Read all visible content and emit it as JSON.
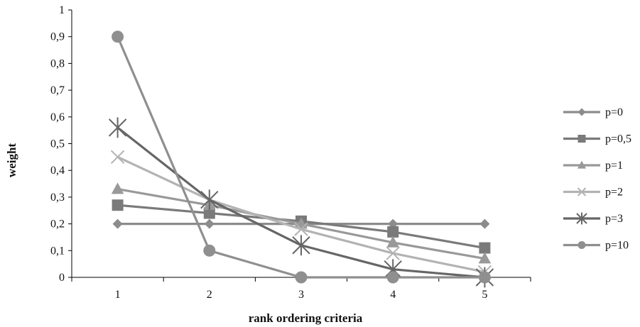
{
  "chart_data": {
    "type": "line",
    "title": "",
    "xlabel": "rank ordering criteria",
    "ylabel": "weight",
    "x": [
      1,
      2,
      3,
      4,
      5
    ],
    "xlim": [
      0.5,
      5.5
    ],
    "ylim": [
      0,
      1
    ],
    "yticks": [
      "0",
      "0,1",
      "0,2",
      "0,3",
      "0,4",
      "0,5",
      "0,6",
      "0,7",
      "0,8",
      "0,9",
      "1"
    ],
    "xticks": [
      "1",
      "2",
      "3",
      "4",
      "5"
    ],
    "grid": false,
    "legend_position": "right",
    "series": [
      {
        "name": "p=0",
        "marker": "diamond",
        "color": "#8c8c8c",
        "values": [
          0.2,
          0.2,
          0.2,
          0.2,
          0.2
        ]
      },
      {
        "name": "p=0,5",
        "marker": "square",
        "color": "#7a7a7a",
        "values": [
          0.27,
          0.24,
          0.21,
          0.17,
          0.11
        ]
      },
      {
        "name": "p=1",
        "marker": "triangle",
        "color": "#999999",
        "values": [
          0.33,
          0.27,
          0.2,
          0.13,
          0.07
        ]
      },
      {
        "name": "p=2",
        "marker": "x",
        "color": "#b3b3b3",
        "values": [
          0.45,
          0.29,
          0.18,
          0.09,
          0.02
        ]
      },
      {
        "name": "p=3",
        "marker": "star",
        "color": "#666666",
        "values": [
          0.56,
          0.29,
          0.12,
          0.03,
          0.0
        ]
      },
      {
        "name": "p=10",
        "marker": "circle",
        "color": "#8f8f8f",
        "values": [
          0.9,
          0.1,
          0.0,
          0.0,
          0.0
        ]
      }
    ]
  }
}
